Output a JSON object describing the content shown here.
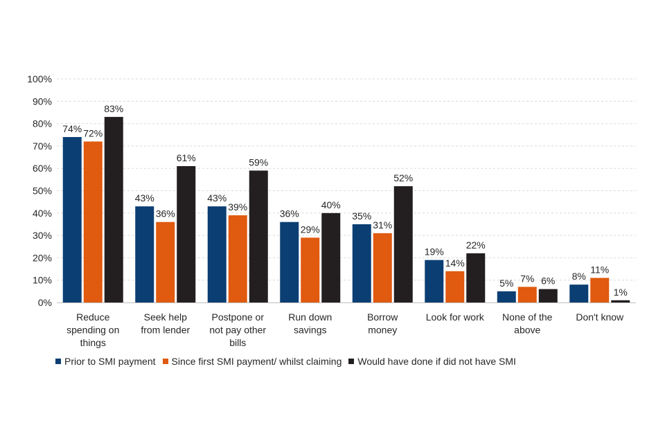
{
  "chart_data": {
    "type": "bar",
    "categories": [
      [
        "Reduce",
        "spending on",
        "things"
      ],
      [
        "Seek help",
        "from lender"
      ],
      [
        "Postpone or",
        "not pay other",
        "bills"
      ],
      [
        "Run down",
        "savings"
      ],
      [
        "Borrow",
        "money"
      ],
      [
        "Look for work"
      ],
      [
        "None of the",
        "above"
      ],
      [
        "Don't know"
      ]
    ],
    "series": [
      {
        "name": "Prior to SMI payment",
        "color": "#0b3f73",
        "values": [
          74,
          43,
          43,
          36,
          35,
          19,
          5,
          8
        ]
      },
      {
        "name": "Since first SMI payment/ whilst claiming",
        "color": "#e05a10",
        "values": [
          72,
          36,
          39,
          29,
          31,
          14,
          7,
          11
        ]
      },
      {
        "name": "Would have done if did not have SMI",
        "color": "#231f20",
        "values": [
          83,
          61,
          59,
          40,
          52,
          22,
          6,
          1
        ]
      }
    ],
    "ylim": [
      0,
      100
    ],
    "yticks": [
      0,
      10,
      20,
      30,
      40,
      50,
      60,
      70,
      80,
      90,
      100
    ],
    "ytick_suffix": "%",
    "value_suffix": "%",
    "grid": true,
    "legend_position": "bottom",
    "title": "",
    "xlabel": "",
    "ylabel": ""
  }
}
